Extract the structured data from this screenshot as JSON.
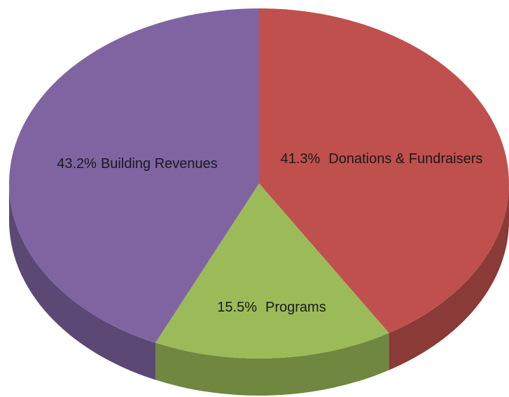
{
  "chart_data": {
    "type": "pie3d",
    "categories": [
      "Donations & Fundraisers",
      "Programs",
      "Building Revenues"
    ],
    "values": [
      41.3,
      15.5,
      43.2
    ],
    "value_labels": [
      "41.3%",
      "15.5%",
      "43.2%"
    ],
    "colors": [
      "#c0504d",
      "#9bbb59",
      "#8064a2"
    ]
  }
}
